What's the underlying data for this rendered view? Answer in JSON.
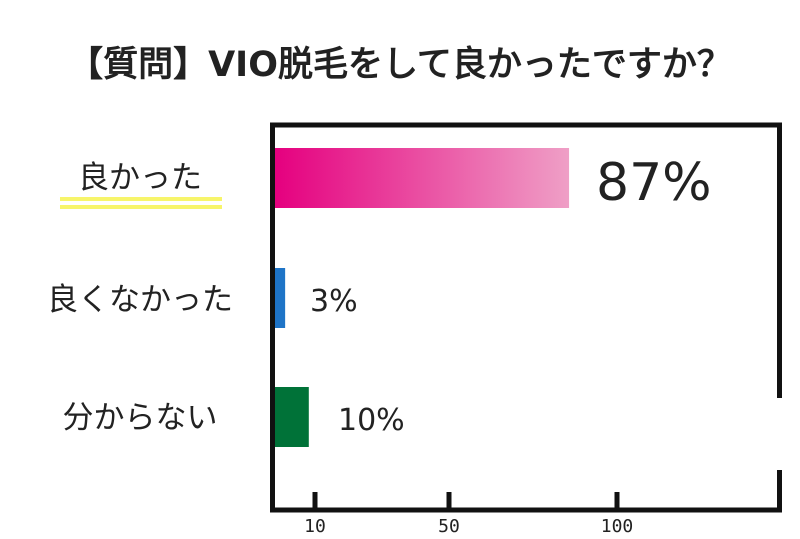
{
  "chart_data": {
    "type": "bar",
    "orientation": "horizontal",
    "title": "【質問】VIO脱毛をして良かったですか？",
    "categories": [
      "良かった",
      "良くなかった",
      "分からない"
    ],
    "values": [
      87,
      3,
      10
    ],
    "data_labels": [
      "87%",
      "3%",
      "10%"
    ],
    "x_ticks": [
      10,
      50,
      100
    ],
    "xlim": [
      0,
      140
    ],
    "grid": false,
    "legend": "none",
    "colors": {
      "良かった": [
        "#e5007f",
        "#ef9fc6"
      ],
      "良くなかった": "#1e74c7",
      "分からない": "#007238",
      "highlight_underline": "#f7f56a"
    }
  }
}
